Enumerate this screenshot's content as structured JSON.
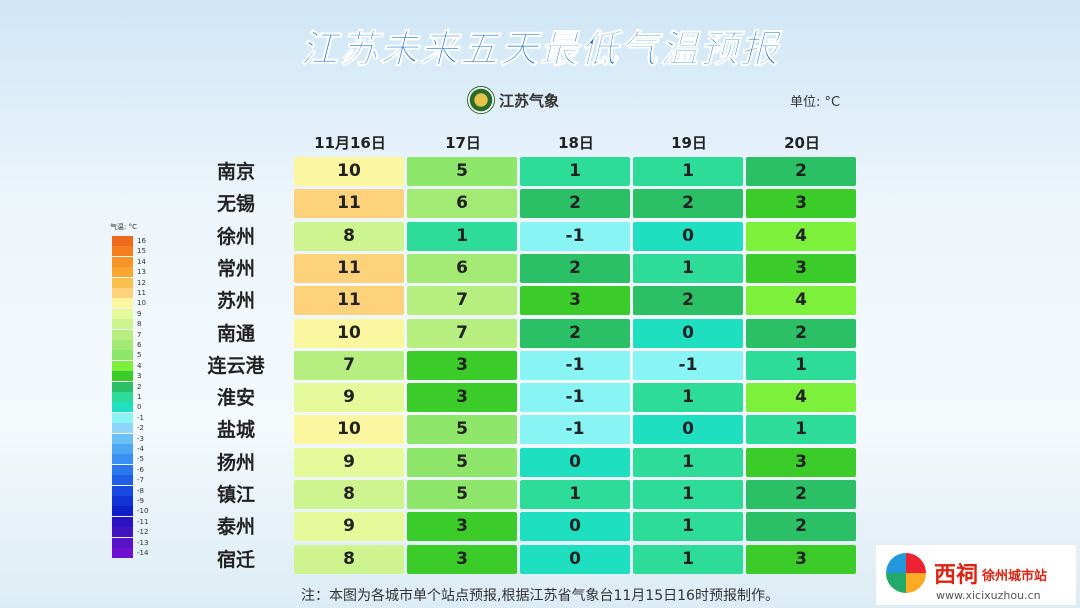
{
  "header": {
    "title": "江苏未来五天最低气温预报",
    "logo": "江苏气象",
    "unit": "单位: °C"
  },
  "table": {
    "columns": [
      "11月16日",
      "17日",
      "18日",
      "19日",
      "20日"
    ],
    "rows": [
      {
        "city": "南京",
        "values": [
          10,
          5,
          1,
          1,
          2
        ]
      },
      {
        "city": "无锡",
        "values": [
          11,
          6,
          2,
          2,
          3
        ]
      },
      {
        "city": "徐州",
        "values": [
          8,
          1,
          -1,
          0,
          4
        ]
      },
      {
        "city": "常州",
        "values": [
          11,
          6,
          2,
          1,
          3
        ]
      },
      {
        "city": "苏州",
        "values": [
          11,
          7,
          3,
          2,
          4
        ]
      },
      {
        "city": "南通",
        "values": [
          10,
          7,
          2,
          0,
          2
        ]
      },
      {
        "city": "连云港",
        "values": [
          7,
          3,
          -1,
          -1,
          1
        ]
      },
      {
        "city": "淮安",
        "values": [
          9,
          3,
          -1,
          1,
          4
        ]
      },
      {
        "city": "盐城",
        "values": [
          10,
          5,
          -1,
          0,
          1
        ]
      },
      {
        "city": "扬州",
        "values": [
          9,
          5,
          0,
          1,
          3
        ]
      },
      {
        "city": "镇江",
        "values": [
          8,
          5,
          1,
          1,
          2
        ]
      },
      {
        "city": "泰州",
        "values": [
          9,
          3,
          0,
          1,
          2
        ]
      },
      {
        "city": "宿迁",
        "values": [
          8,
          3,
          0,
          1,
          3
        ]
      }
    ]
  },
  "legend": {
    "title": "气温:  °C",
    "entries": [
      {
        "value": 16,
        "color": "#f06a1e"
      },
      {
        "value": 15,
        "color": "#f47e20"
      },
      {
        "value": 14,
        "color": "#f79428"
      },
      {
        "value": 13,
        "color": "#f9a72e"
      },
      {
        "value": 12,
        "color": "#fbc14e"
      },
      {
        "value": 11,
        "color": "#fdd27a"
      },
      {
        "value": 10,
        "color": "#fbf6a0"
      },
      {
        "value": 9,
        "color": "#e6fa9c"
      },
      {
        "value": 8,
        "color": "#cdf48e"
      },
      {
        "value": 7,
        "color": "#b6ee80"
      },
      {
        "value": 6,
        "color": "#a2ea74"
      },
      {
        "value": 5,
        "color": "#8ee66a"
      },
      {
        "value": 4,
        "color": "#7cf03a"
      },
      {
        "value": 3,
        "color": "#3ccc2a"
      },
      {
        "value": 2,
        "color": "#2bc066"
      },
      {
        "value": 1,
        "color": "#2cdc98"
      },
      {
        "value": 0,
        "color": "#1ee0c0"
      },
      {
        "value": -1,
        "color": "#88f4f4"
      },
      {
        "value": -2,
        "color": "#8fd6f8"
      },
      {
        "value": -3,
        "color": "#6cc0f8"
      },
      {
        "value": -4,
        "color": "#50a8f5"
      },
      {
        "value": -5,
        "color": "#3a8ff2"
      },
      {
        "value": -6,
        "color": "#2a78ee"
      },
      {
        "value": -7,
        "color": "#1f5fe8"
      },
      {
        "value": -8,
        "color": "#1848e0"
      },
      {
        "value": -9,
        "color": "#1233d6"
      },
      {
        "value": -10,
        "color": "#1020c8"
      },
      {
        "value": -11,
        "color": "#2a14c0"
      },
      {
        "value": -12,
        "color": "#4012c0"
      },
      {
        "value": -13,
        "color": "#5a12c8"
      },
      {
        "value": -14,
        "color": "#7010d0"
      }
    ]
  },
  "note": "注：本图为各城市单个站点预报,根据江苏省气象台11月15日16时预报制作。",
  "watermark": {
    "brand": "西祠",
    "site": "徐州城市站",
    "url": "www.xicixuzhou.cn"
  }
}
